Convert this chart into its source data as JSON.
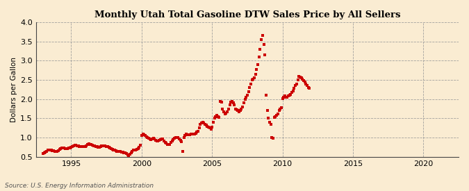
{
  "title": "Monthly Utah Total Gasoline DTW Sales Price by All Sellers",
  "ylabel": "Dollars per Gallon",
  "source": "Source: U.S. Energy Information Administration",
  "background_color": "#faecd2",
  "marker_color": "#cc0000",
  "xlim": [
    1992.5,
    2022.5
  ],
  "ylim": [
    0.5,
    4.0
  ],
  "yticks": [
    0.5,
    1.0,
    1.5,
    2.0,
    2.5,
    3.0,
    3.5,
    4.0
  ],
  "xticks": [
    1995,
    2000,
    2005,
    2010,
    2015,
    2020
  ],
  "data": [
    [
      1993.0,
      0.58
    ],
    [
      1993.083,
      0.6
    ],
    [
      1993.167,
      0.63
    ],
    [
      1993.25,
      0.65
    ],
    [
      1993.333,
      0.67
    ],
    [
      1993.417,
      0.68
    ],
    [
      1993.5,
      0.68
    ],
    [
      1993.583,
      0.67
    ],
    [
      1993.667,
      0.66
    ],
    [
      1993.75,
      0.66
    ],
    [
      1993.833,
      0.65
    ],
    [
      1993.917,
      0.64
    ],
    [
      1994.0,
      0.64
    ],
    [
      1994.083,
      0.66
    ],
    [
      1994.167,
      0.7
    ],
    [
      1994.25,
      0.72
    ],
    [
      1994.333,
      0.73
    ],
    [
      1994.417,
      0.73
    ],
    [
      1994.5,
      0.73
    ],
    [
      1994.583,
      0.72
    ],
    [
      1994.667,
      0.72
    ],
    [
      1994.75,
      0.72
    ],
    [
      1994.833,
      0.73
    ],
    [
      1994.917,
      0.74
    ],
    [
      1995.0,
      0.75
    ],
    [
      1995.083,
      0.77
    ],
    [
      1995.167,
      0.79
    ],
    [
      1995.25,
      0.8
    ],
    [
      1995.333,
      0.8
    ],
    [
      1995.417,
      0.79
    ],
    [
      1995.5,
      0.78
    ],
    [
      1995.583,
      0.77
    ],
    [
      1995.667,
      0.77
    ],
    [
      1995.75,
      0.76
    ],
    [
      1995.833,
      0.76
    ],
    [
      1995.917,
      0.76
    ],
    [
      1996.0,
      0.77
    ],
    [
      1996.083,
      0.79
    ],
    [
      1996.167,
      0.83
    ],
    [
      1996.25,
      0.84
    ],
    [
      1996.333,
      0.83
    ],
    [
      1996.417,
      0.82
    ],
    [
      1996.5,
      0.81
    ],
    [
      1996.583,
      0.79
    ],
    [
      1996.667,
      0.78
    ],
    [
      1996.75,
      0.77
    ],
    [
      1996.833,
      0.76
    ],
    [
      1996.917,
      0.75
    ],
    [
      1997.0,
      0.75
    ],
    [
      1997.083,
      0.76
    ],
    [
      1997.167,
      0.78
    ],
    [
      1997.25,
      0.79
    ],
    [
      1997.333,
      0.79
    ],
    [
      1997.417,
      0.78
    ],
    [
      1997.5,
      0.77
    ],
    [
      1997.583,
      0.76
    ],
    [
      1997.667,
      0.75
    ],
    [
      1997.75,
      0.74
    ],
    [
      1997.833,
      0.72
    ],
    [
      1997.917,
      0.7
    ],
    [
      1998.0,
      0.68
    ],
    [
      1998.083,
      0.67
    ],
    [
      1998.167,
      0.66
    ],
    [
      1998.25,
      0.65
    ],
    [
      1998.333,
      0.65
    ],
    [
      1998.417,
      0.65
    ],
    [
      1998.5,
      0.64
    ],
    [
      1998.583,
      0.63
    ],
    [
      1998.667,
      0.62
    ],
    [
      1998.75,
      0.61
    ],
    [
      1998.833,
      0.6
    ],
    [
      1998.917,
      0.58
    ],
    [
      1999.0,
      0.55
    ],
    [
      1999.083,
      0.54
    ],
    [
      1999.167,
      0.57
    ],
    [
      1999.25,
      0.61
    ],
    [
      1999.333,
      0.65
    ],
    [
      1999.417,
      0.67
    ],
    [
      1999.5,
      0.68
    ],
    [
      1999.583,
      0.68
    ],
    [
      1999.667,
      0.7
    ],
    [
      1999.75,
      0.72
    ],
    [
      1999.833,
      0.75
    ],
    [
      1999.917,
      0.8
    ],
    [
      2000.0,
      1.05
    ],
    [
      2000.083,
      1.1
    ],
    [
      2000.167,
      1.08
    ],
    [
      2000.25,
      1.05
    ],
    [
      2000.333,
      1.02
    ],
    [
      2000.417,
      1.0
    ],
    [
      2000.5,
      0.98
    ],
    [
      2000.583,
      0.96
    ],
    [
      2000.667,
      0.95
    ],
    [
      2000.75,
      0.96
    ],
    [
      2000.833,
      0.98
    ],
    [
      2000.917,
      0.97
    ],
    [
      2001.0,
      0.94
    ],
    [
      2001.083,
      0.92
    ],
    [
      2001.167,
      0.92
    ],
    [
      2001.25,
      0.94
    ],
    [
      2001.333,
      0.95
    ],
    [
      2001.417,
      0.96
    ],
    [
      2001.5,
      0.96
    ],
    [
      2001.583,
      0.92
    ],
    [
      2001.667,
      0.88
    ],
    [
      2001.75,
      0.85
    ],
    [
      2001.833,
      0.83
    ],
    [
      2001.917,
      0.82
    ],
    [
      2002.0,
      0.83
    ],
    [
      2002.083,
      0.87
    ],
    [
      2002.167,
      0.91
    ],
    [
      2002.25,
      0.95
    ],
    [
      2002.333,
      0.98
    ],
    [
      2002.417,
      1.0
    ],
    [
      2002.5,
      1.01
    ],
    [
      2002.583,
      1.0
    ],
    [
      2002.667,
      0.97
    ],
    [
      2002.75,
      0.93
    ],
    [
      2002.833,
      0.9
    ],
    [
      2002.917,
      0.64
    ],
    [
      2003.0,
      1.0
    ],
    [
      2003.083,
      1.05
    ],
    [
      2003.167,
      1.1
    ],
    [
      2003.25,
      1.08
    ],
    [
      2003.333,
      1.07
    ],
    [
      2003.417,
      1.08
    ],
    [
      2003.5,
      1.09
    ],
    [
      2003.583,
      1.1
    ],
    [
      2003.667,
      1.1
    ],
    [
      2003.75,
      1.1
    ],
    [
      2003.833,
      1.12
    ],
    [
      2003.917,
      1.14
    ],
    [
      2004.0,
      1.16
    ],
    [
      2004.083,
      1.25
    ],
    [
      2004.167,
      1.35
    ],
    [
      2004.25,
      1.38
    ],
    [
      2004.333,
      1.4
    ],
    [
      2004.417,
      1.38
    ],
    [
      2004.5,
      1.35
    ],
    [
      2004.583,
      1.32
    ],
    [
      2004.667,
      1.3
    ],
    [
      2004.75,
      1.28
    ],
    [
      2004.833,
      1.26
    ],
    [
      2004.917,
      1.22
    ],
    [
      2005.0,
      1.28
    ],
    [
      2005.083,
      1.4
    ],
    [
      2005.167,
      1.5
    ],
    [
      2005.25,
      1.55
    ],
    [
      2005.333,
      1.58
    ],
    [
      2005.417,
      1.55
    ],
    [
      2005.5,
      1.52
    ],
    [
      2005.583,
      1.95
    ],
    [
      2005.667,
      1.92
    ],
    [
      2005.75,
      1.75
    ],
    [
      2005.833,
      1.68
    ],
    [
      2005.917,
      1.62
    ],
    [
      2006.0,
      1.63
    ],
    [
      2006.083,
      1.68
    ],
    [
      2006.167,
      1.75
    ],
    [
      2006.25,
      1.85
    ],
    [
      2006.333,
      1.92
    ],
    [
      2006.417,
      1.95
    ],
    [
      2006.5,
      1.9
    ],
    [
      2006.583,
      1.85
    ],
    [
      2006.667,
      1.75
    ],
    [
      2006.75,
      1.72
    ],
    [
      2006.833,
      1.7
    ],
    [
      2006.917,
      1.68
    ],
    [
      2007.0,
      1.7
    ],
    [
      2007.083,
      1.75
    ],
    [
      2007.167,
      1.8
    ],
    [
      2007.25,
      1.9
    ],
    [
      2007.333,
      2.0
    ],
    [
      2007.417,
      2.05
    ],
    [
      2007.5,
      2.1
    ],
    [
      2007.583,
      2.2
    ],
    [
      2007.667,
      2.3
    ],
    [
      2007.75,
      2.4
    ],
    [
      2007.833,
      2.5
    ],
    [
      2007.917,
      2.52
    ],
    [
      2008.0,
      2.55
    ],
    [
      2008.083,
      2.65
    ],
    [
      2008.167,
      2.78
    ],
    [
      2008.25,
      2.9
    ],
    [
      2008.333,
      3.1
    ],
    [
      2008.417,
      3.3
    ],
    [
      2008.5,
      3.55
    ],
    [
      2008.583,
      3.65
    ],
    [
      2008.667,
      3.42
    ],
    [
      2008.75,
      3.15
    ],
    [
      2008.833,
      2.1
    ],
    [
      2008.917,
      1.7
    ],
    [
      2009.0,
      1.5
    ],
    [
      2009.083,
      1.4
    ],
    [
      2009.167,
      1.35
    ],
    [
      2009.25,
      1.0
    ],
    [
      2009.333,
      0.98
    ],
    [
      2009.417,
      1.52
    ],
    [
      2009.5,
      1.55
    ],
    [
      2009.583,
      1.58
    ],
    [
      2009.667,
      1.62
    ],
    [
      2009.75,
      1.7
    ],
    [
      2009.833,
      1.75
    ],
    [
      2009.917,
      1.78
    ],
    [
      2010.0,
      2.02
    ],
    [
      2010.083,
      2.05
    ],
    [
      2010.167,
      2.08
    ],
    [
      2010.25,
      2.05
    ],
    [
      2010.333,
      2.05
    ],
    [
      2010.417,
      2.08
    ],
    [
      2010.5,
      2.1
    ],
    [
      2010.583,
      2.12
    ],
    [
      2010.667,
      2.18
    ],
    [
      2010.75,
      2.22
    ],
    [
      2010.833,
      2.28
    ],
    [
      2010.917,
      2.35
    ],
    [
      2011.0,
      2.4
    ],
    [
      2011.083,
      2.5
    ],
    [
      2011.167,
      2.6
    ],
    [
      2011.25,
      2.58
    ],
    [
      2011.333,
      2.55
    ],
    [
      2011.417,
      2.52
    ],
    [
      2011.5,
      2.48
    ],
    [
      2011.583,
      2.45
    ],
    [
      2011.667,
      2.4
    ],
    [
      2011.75,
      2.35
    ],
    [
      2011.833,
      2.3
    ],
    [
      2011.917,
      2.28
    ]
  ]
}
